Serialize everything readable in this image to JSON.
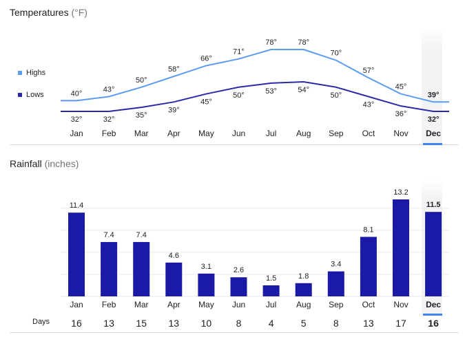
{
  "temperatures": {
    "title": "Temperatures",
    "unit": "(°F)",
    "legend": {
      "highs": "Highs",
      "lows": "Lows"
    },
    "colors": {
      "highs": "#5b9cf3",
      "lows": "#2a2aa8"
    }
  },
  "rainfall": {
    "title": "Rainfall",
    "unit": "(inches)",
    "bar_color": "#1a1aa6"
  },
  "days_label": "Days",
  "selected_month": "Dec",
  "chart_data": [
    {
      "type": "line",
      "title": "Temperatures (°F)",
      "categories": [
        "Jan",
        "Feb",
        "Mar",
        "Apr",
        "May",
        "Jun",
        "Jul",
        "Aug",
        "Sep",
        "Oct",
        "Nov",
        "Dec"
      ],
      "series": [
        {
          "name": "Highs",
          "values": [
            40,
            43,
            50,
            58,
            66,
            71,
            78,
            78,
            70,
            57,
            45,
            39
          ],
          "labels": [
            "40°",
            "43°",
            "50°",
            "58°",
            "66°",
            "71°",
            "78°",
            "78°",
            "70°",
            "57°",
            "45°",
            "39°"
          ]
        },
        {
          "name": "Lows",
          "values": [
            32,
            32,
            35,
            39,
            45,
            50,
            53,
            54,
            50,
            43,
            36,
            32
          ],
          "labels": [
            "32°",
            "32°",
            "35°",
            "39°",
            "45°",
            "50°",
            "53°",
            "54°",
            "50°",
            "43°",
            "36°",
            "32°"
          ]
        }
      ],
      "ylim": [
        32,
        78
      ],
      "legend": "left"
    },
    {
      "type": "bar",
      "title": "Rainfall (inches)",
      "categories": [
        "Jan",
        "Feb",
        "Mar",
        "Apr",
        "May",
        "Jun",
        "Jul",
        "Aug",
        "Sep",
        "Oct",
        "Nov",
        "Dec"
      ],
      "values": [
        11.4,
        7.4,
        7.4,
        4.6,
        3.1,
        2.6,
        1.5,
        1.8,
        3.4,
        8.1,
        13.2,
        11.5
      ],
      "labels": [
        "11.4",
        "7.4",
        "7.4",
        "4.6",
        "3.1",
        "2.6",
        "1.5",
        "1.8",
        "3.4",
        "8.1",
        "13.2",
        "11.5"
      ],
      "ylim": [
        0,
        13.2
      ],
      "gridlines": [
        0,
        3,
        6,
        9,
        12
      ]
    }
  ],
  "days": {
    "label": "Days",
    "values": [
      "16",
      "13",
      "15",
      "13",
      "10",
      "8",
      "4",
      "5",
      "8",
      "13",
      "17",
      "16"
    ]
  }
}
